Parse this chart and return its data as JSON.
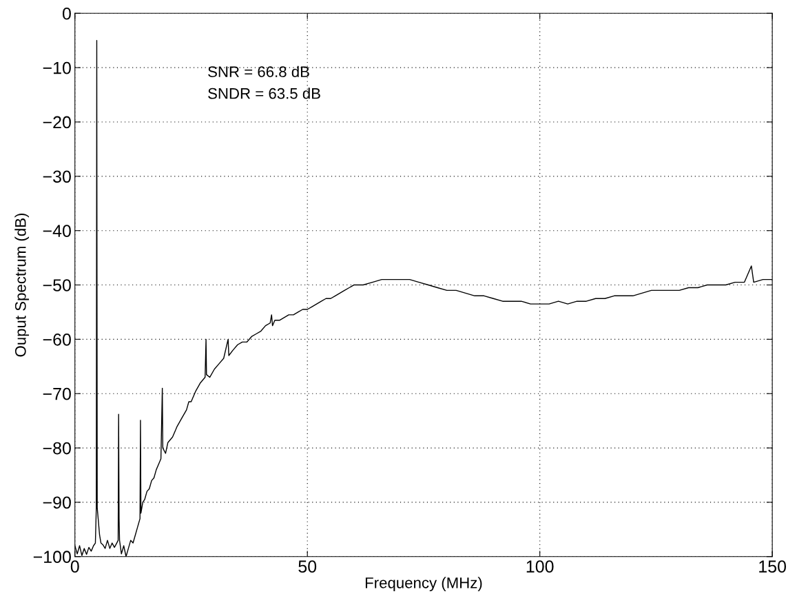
{
  "chart_data": {
    "type": "line",
    "xlabel": "Frequency (MHz)",
    "ylabel": "Ouput Spectrum (dB)",
    "annotations": [
      "SNR = 66.8 dB",
      "SNDR = 63.5 dB"
    ],
    "xlim": [
      0,
      150
    ],
    "xticks": [
      0,
      50,
      100,
      150
    ],
    "ylim": [
      -100,
      0
    ],
    "yticks": [
      -100,
      -90,
      -80,
      -70,
      -60,
      -50,
      -40,
      -30,
      -20,
      -10,
      0
    ],
    "grid": true,
    "line_style": "solid",
    "marker": "none",
    "series": [
      {
        "color": "#000000",
        "x": [
          0,
          0.5,
          1,
          1.5,
          2,
          2.5,
          3,
          3.5,
          4,
          4.4,
          4.6,
          4.7,
          4.8,
          5.0,
          5.3,
          5.6,
          6,
          6.5,
          7,
          7.5,
          8,
          8.5,
          9,
          9.3,
          9.4,
          9.5,
          9.6,
          10,
          10.5,
          11,
          11.5,
          12,
          12.5,
          13,
          13.5,
          14.0,
          14.1,
          14.2,
          14.6,
          15,
          15.5,
          16,
          16.5,
          17,
          17.5,
          18,
          18.5,
          18.8,
          18.9,
          19.5,
          20,
          21,
          22,
          23,
          24,
          24.5,
          25,
          26,
          27,
          28,
          28.2,
          28.3,
          29,
          30,
          31,
          32,
          32.95,
          33.1,
          34,
          35,
          36,
          37,
          38,
          39,
          40,
          41,
          42,
          42.3,
          42.5,
          43,
          44,
          45,
          46,
          47,
          48,
          49,
          50,
          51,
          52,
          53,
          54,
          55,
          56,
          57,
          58,
          59,
          60,
          62,
          64,
          66,
          68,
          70,
          72,
          74,
          76,
          78,
          80,
          82,
          84,
          86,
          88,
          90,
          92,
          94,
          96,
          98,
          100,
          102,
          104,
          106,
          108,
          110,
          112,
          114,
          116,
          118,
          120,
          122,
          124,
          126,
          128,
          130,
          132,
          134,
          136,
          138,
          140,
          142,
          144,
          145.5,
          146,
          148,
          150
        ],
        "values": [
          -98,
          -99.5,
          -98,
          -99.8,
          -98.5,
          -99.6,
          -98.3,
          -99,
          -98,
          -97.5,
          -91,
          -5,
          -91,
          -93,
          -96,
          -97.5,
          -97.8,
          -98.5,
          -97,
          -98.5,
          -97.5,
          -98.3,
          -97.5,
          -97,
          -73.8,
          -93,
          -97,
          -99.5,
          -98,
          -100,
          -98.5,
          -97,
          -97.5,
          -96,
          -94.5,
          -93,
          -74.9,
          -92,
          -90,
          -89.5,
          -88,
          -87.5,
          -86,
          -85.5,
          -84,
          -83,
          -82,
          -69,
          -80,
          -81,
          -79,
          -78,
          -76,
          -74.5,
          -73,
          -71.5,
          -71.5,
          -69.5,
          -68,
          -67,
          -60,
          -66.5,
          -67,
          -65.5,
          -64.5,
          -63.5,
          -60,
          -63,
          -62,
          -61,
          -60.5,
          -60.5,
          -59.5,
          -59,
          -58.5,
          -57.5,
          -57,
          -55.5,
          -57.5,
          -56.5,
          -56.5,
          -56,
          -55.5,
          -55.5,
          -55,
          -54.5,
          -54.5,
          -54,
          -53.5,
          -53,
          -52.5,
          -52.5,
          -52,
          -51.5,
          -51,
          -50.5,
          -50,
          -50,
          -49.5,
          -49,
          -49,
          -49,
          -49,
          -49.5,
          -50,
          -50.5,
          -51,
          -51,
          -51.5,
          -52,
          -52,
          -52.5,
          -53,
          -53,
          -53,
          -53.5,
          -53.5,
          -53.5,
          -53,
          -53.5,
          -53,
          -53,
          -52.5,
          -52.5,
          -52,
          -52,
          -52,
          -51.5,
          -51,
          -51,
          -51,
          -51,
          -50.5,
          -50.5,
          -50,
          -50,
          -50,
          -49.5,
          -49.5,
          -46.5,
          -49.5,
          -49,
          -49
        ]
      }
    ]
  }
}
